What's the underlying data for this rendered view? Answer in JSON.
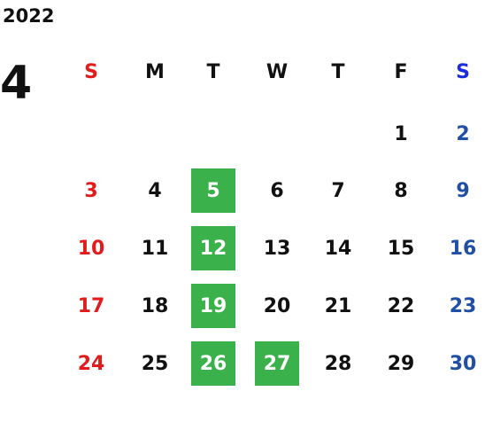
{
  "calendar": {
    "year": "2022",
    "month": "4",
    "weekdays": [
      "S",
      "M",
      "T",
      "W",
      "T",
      "F",
      "S"
    ],
    "weeks": [
      [
        "",
        "",
        "",
        "",
        "",
        "1",
        "2"
      ],
      [
        "3",
        "4",
        "5",
        "6",
        "7",
        "8",
        "9"
      ],
      [
        "10",
        "11",
        "12",
        "13",
        "14",
        "15",
        "16"
      ],
      [
        "17",
        "18",
        "19",
        "20",
        "21",
        "22",
        "23"
      ],
      [
        "24",
        "25",
        "26",
        "27",
        "28",
        "29",
        "30"
      ]
    ],
    "highlighted_days": [
      "5",
      "12",
      "19",
      "26",
      "27"
    ],
    "colors": {
      "sunday": "#e21c1c",
      "saturday": "#1f4fa6",
      "saturday_header": "#1a2ee0",
      "highlight": "#3ab14a"
    }
  }
}
